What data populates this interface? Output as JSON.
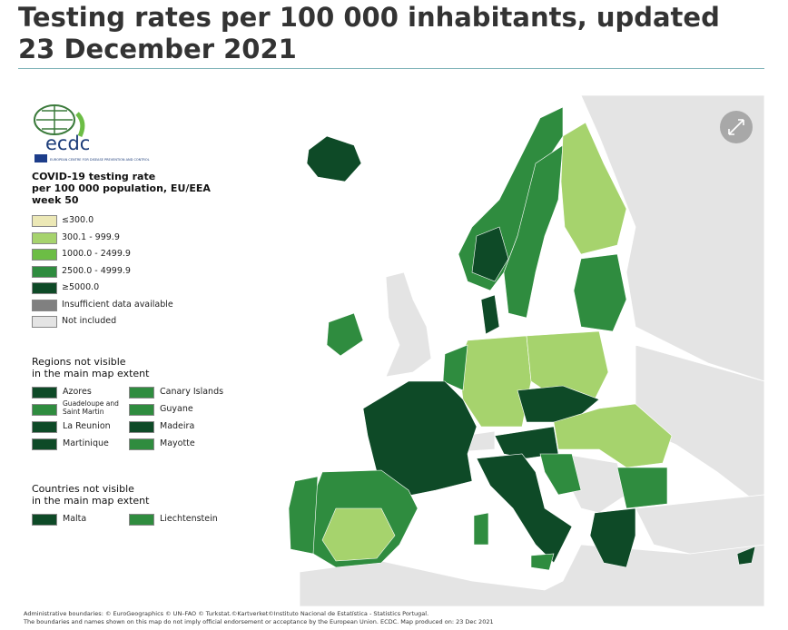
{
  "header": {
    "title": "Testing rates per 100 000 inhabitants, updated 23 December 2021"
  },
  "legend": {
    "logo": "ecdc",
    "logo_subtitle": "EUROPEAN CENTRE FOR DISEASE PREVENTION AND CONTROL",
    "title": [
      "COVID-19 testing rate",
      "per 100 000 population, EU/EEA",
      "week 50"
    ],
    "items": [
      {
        "label": "≤300.0",
        "color": "#ece8b6"
      },
      {
        "label": "300.1 - 999.9",
        "color": "#a6d36d"
      },
      {
        "label": "1000.0 - 2499.9",
        "color": "#6cbd45"
      },
      {
        "label": "2500.0 - 4999.9",
        "color": "#2f8c3f"
      },
      {
        "label": "≥5000.0",
        "color": "#0e4a27"
      },
      {
        "label": "Insufficient data available",
        "color": "#808080"
      },
      {
        "label": "Not included",
        "color": "#e4e4e4"
      }
    ]
  },
  "regions": {
    "title": [
      "Regions not visible",
      "in the main map extent"
    ],
    "items": [
      {
        "label": "Azores",
        "color": "#0e4a27"
      },
      {
        "label": "Guadeloupe and Saint Martin",
        "color": "#2f8c3f"
      },
      {
        "label": "La Reunion",
        "color": "#0e4a27"
      },
      {
        "label": "Martinique",
        "color": "#0e4a27"
      },
      {
        "label": "Canary Islands",
        "color": "#2f8c3f"
      },
      {
        "label": "Guyane",
        "color": "#2f8c3f"
      },
      {
        "label": "Madeira",
        "color": "#0e4a27"
      },
      {
        "label": "Mayotte",
        "color": "#2f8c3f"
      }
    ]
  },
  "countries": {
    "title": [
      "Countries not visible",
      "in the main map extent"
    ],
    "items": [
      {
        "label": "Malta",
        "color": "#0e4a27"
      },
      {
        "label": "Liechtenstein",
        "color": "#2f8c3f"
      }
    ]
  },
  "footer": [
    "Administrative boundaries: © EuroGeographics © UN–FAO © Turkstat.©Kartverket©Instituto Nacional de Estatística - Statistics Portugal.",
    "The boundaries and names shown on this map do not imply official endorsement or acceptance by the European Union. ECDC. Map produced on: 23 Dec 2021"
  ]
}
